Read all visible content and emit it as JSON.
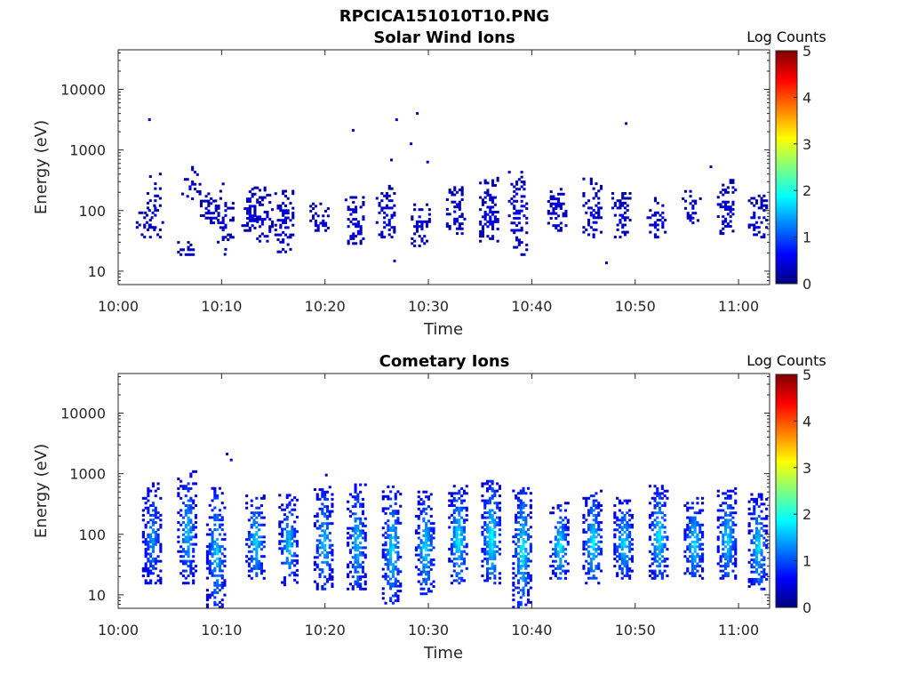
{
  "figure_title": "RPCICA151010T10.PNG",
  "colors": {
    "colormap": [
      "#00007f",
      "#0000ff",
      "#007fff",
      "#00ffff",
      "#7fff7f",
      "#ffff00",
      "#ff7f00",
      "#ff0000",
      "#7f0000"
    ]
  },
  "chart_data": [
    {
      "type": "heatmap",
      "title": "Solar Wind Ions",
      "xlabel": "Time",
      "ylabel": "Energy (eV)",
      "x_ticks": [
        "10:00",
        "10:10",
        "10:20",
        "10:30",
        "10:40",
        "10:50",
        "11:00"
      ],
      "x_tick_minutes": [
        0,
        10,
        20,
        30,
        40,
        50,
        60
      ],
      "xlim_minutes": [
        0,
        63
      ],
      "y_scale": "log",
      "y_ticks": [
        "10",
        "100",
        "1000",
        "10000"
      ],
      "y_tick_values": [
        10,
        100,
        1000,
        10000
      ],
      "ylim": [
        6,
        45000
      ],
      "colorbar": {
        "label": "Log Counts",
        "ticks": [
          "0",
          "1",
          "2",
          "3",
          "4",
          "5"
        ],
        "range": [
          0,
          5
        ]
      },
      "bursts": [
        {
          "t": 2.6,
          "emin": 35,
          "emax": 130,
          "peak": 0.3,
          "density": 0.35
        },
        {
          "t": 3.4,
          "emin": 35,
          "emax": 420,
          "peak": 0.3,
          "density": 0.25
        },
        {
          "t": 6.6,
          "emin": 18,
          "emax": 32,
          "peak": 0.3,
          "density": 0.6
        },
        {
          "t": 7.0,
          "emin": 150,
          "emax": 500,
          "peak": 0.3,
          "density": 0.3
        },
        {
          "t": 8.8,
          "emin": 60,
          "emax": 200,
          "peak": 0.35,
          "density": 0.55
        },
        {
          "t": 10.2,
          "emin": 20,
          "emax": 270,
          "peak": 0.3,
          "density": 0.3
        },
        {
          "t": 12.8,
          "emin": 45,
          "emax": 250,
          "peak": 0.4,
          "density": 0.55
        },
        {
          "t": 14.0,
          "emin": 30,
          "emax": 250,
          "peak": 0.4,
          "density": 0.55
        },
        {
          "t": 16.0,
          "emin": 20,
          "emax": 230,
          "peak": 0.4,
          "density": 0.55
        },
        {
          "t": 19.4,
          "emin": 45,
          "emax": 130,
          "peak": 0.35,
          "density": 0.6
        },
        {
          "t": 22.8,
          "emin": 25,
          "emax": 160,
          "peak": 0.4,
          "density": 0.6
        },
        {
          "t": 25.8,
          "emin": 35,
          "emax": 250,
          "peak": 0.4,
          "density": 0.55
        },
        {
          "t": 29.2,
          "emin": 25,
          "emax": 130,
          "peak": 0.35,
          "density": 0.5
        },
        {
          "t": 32.6,
          "emin": 40,
          "emax": 250,
          "peak": 0.4,
          "density": 0.55
        },
        {
          "t": 35.8,
          "emin": 30,
          "emax": 340,
          "peak": 0.45,
          "density": 0.65
        },
        {
          "t": 38.6,
          "emin": 18,
          "emax": 440,
          "peak": 0.45,
          "density": 0.55
        },
        {
          "t": 42.4,
          "emin": 45,
          "emax": 250,
          "peak": 0.45,
          "density": 0.65
        },
        {
          "t": 45.8,
          "emin": 35,
          "emax": 350,
          "peak": 0.45,
          "density": 0.6
        },
        {
          "t": 48.6,
          "emin": 35,
          "emax": 200,
          "peak": 0.4,
          "density": 0.55
        },
        {
          "t": 52.0,
          "emin": 35,
          "emax": 160,
          "peak": 0.4,
          "density": 0.55
        },
        {
          "t": 55.4,
          "emin": 60,
          "emax": 200,
          "peak": 0.35,
          "density": 0.45
        },
        {
          "t": 58.8,
          "emin": 40,
          "emax": 330,
          "peak": 0.4,
          "density": 0.55
        },
        {
          "t": 61.8,
          "emin": 35,
          "emax": 200,
          "peak": 0.4,
          "density": 0.6
        }
      ],
      "isolated_points": [
        {
          "t": 2.9,
          "e": 3000
        },
        {
          "t": 22.6,
          "e": 2000
        },
        {
          "t": 26.8,
          "e": 3000
        },
        {
          "t": 28.8,
          "e": 3800
        },
        {
          "t": 49.0,
          "e": 2600
        },
        {
          "t": 26.3,
          "e": 650
        },
        {
          "t": 28.2,
          "e": 1200
        },
        {
          "t": 29.8,
          "e": 600
        },
        {
          "t": 57.2,
          "e": 500
        },
        {
          "t": 47.1,
          "e": 13
        },
        {
          "t": 26.6,
          "e": 14
        },
        {
          "t": 10.2,
          "e": 18
        }
      ]
    },
    {
      "type": "heatmap",
      "title": "Cometary Ions",
      "xlabel": "Time",
      "ylabel": "Energy (eV)",
      "x_ticks": [
        "10:00",
        "10:10",
        "10:20",
        "10:30",
        "10:40",
        "10:50",
        "11:00"
      ],
      "x_tick_minutes": [
        0,
        10,
        20,
        30,
        40,
        50,
        60
      ],
      "xlim_minutes": [
        0,
        63
      ],
      "y_scale": "log",
      "y_ticks": [
        "10",
        "100",
        "1000",
        "10000"
      ],
      "y_tick_values": [
        10,
        100,
        1000,
        10000
      ],
      "ylim": [
        6,
        45000
      ],
      "colorbar": {
        "label": "Log Counts",
        "ticks": [
          "0",
          "1",
          "2",
          "3",
          "4",
          "5"
        ],
        "range": [
          0,
          5
        ]
      },
      "bursts": [
        {
          "t": 3.2,
          "emin": 15,
          "emax": 700,
          "peak": 1.3,
          "density": 0.75
        },
        {
          "t": 6.6,
          "emin": 15,
          "emax": 1100,
          "peak": 1.5,
          "density": 0.75
        },
        {
          "t": 9.4,
          "emin": 6,
          "emax": 600,
          "peak": 1.6,
          "density": 0.75
        },
        {
          "t": 13.2,
          "emin": 18,
          "emax": 450,
          "peak": 1.7,
          "density": 0.8
        },
        {
          "t": 16.4,
          "emin": 14,
          "emax": 500,
          "peak": 1.6,
          "density": 0.8
        },
        {
          "t": 19.8,
          "emin": 12,
          "emax": 650,
          "peak": 1.6,
          "density": 0.8
        },
        {
          "t": 23.0,
          "emin": 12,
          "emax": 650,
          "peak": 1.6,
          "density": 0.8
        },
        {
          "t": 26.4,
          "emin": 7,
          "emax": 600,
          "peak": 1.7,
          "density": 0.8
        },
        {
          "t": 29.6,
          "emin": 10,
          "emax": 500,
          "peak": 1.7,
          "density": 0.8
        },
        {
          "t": 32.8,
          "emin": 15,
          "emax": 650,
          "peak": 1.8,
          "density": 0.8
        },
        {
          "t": 36.0,
          "emin": 15,
          "emax": 750,
          "peak": 1.9,
          "density": 0.85
        },
        {
          "t": 39.0,
          "emin": 6,
          "emax": 700,
          "peak": 1.8,
          "density": 0.8
        },
        {
          "t": 42.6,
          "emin": 18,
          "emax": 320,
          "peak": 1.8,
          "density": 0.85
        },
        {
          "t": 45.8,
          "emin": 15,
          "emax": 500,
          "peak": 1.8,
          "density": 0.85
        },
        {
          "t": 48.8,
          "emin": 18,
          "emax": 400,
          "peak": 1.7,
          "density": 0.85
        },
        {
          "t": 52.2,
          "emin": 18,
          "emax": 650,
          "peak": 1.8,
          "density": 0.85
        },
        {
          "t": 55.6,
          "emin": 18,
          "emax": 400,
          "peak": 1.7,
          "density": 0.85
        },
        {
          "t": 58.8,
          "emin": 18,
          "emax": 550,
          "peak": 1.7,
          "density": 0.85
        },
        {
          "t": 61.8,
          "emin": 12,
          "emax": 450,
          "peak": 1.7,
          "density": 0.85
        }
      ],
      "isolated_points": [
        {
          "t": 10.4,
          "e": 2000
        },
        {
          "t": 10.8,
          "e": 1600
        },
        {
          "t": 20.0,
          "e": 900
        }
      ]
    }
  ]
}
